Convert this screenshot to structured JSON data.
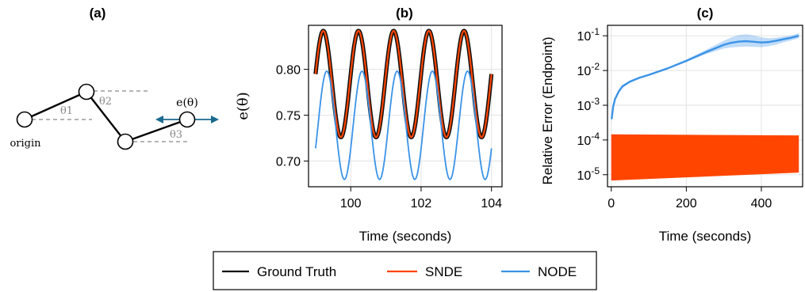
{
  "panels": {
    "a": {
      "title": "(a)",
      "origin_label": "origin",
      "theta1": "θ1",
      "theta2": "θ2",
      "theta3": "θ3",
      "e_label": "e(θ)"
    }
  },
  "legend": {
    "items": [
      {
        "label": "Ground Truth",
        "color": "#111111"
      },
      {
        "label": "SNDE",
        "color": "#ff4500"
      },
      {
        "label": "NODE",
        "color": "#3b93e8"
      }
    ]
  },
  "chart_data": [
    {
      "panel": "(b)",
      "type": "line",
      "title": "(b)",
      "xlabel": "Time (seconds)",
      "ylabel": "e(θ)",
      "xlim": [
        98.8,
        104.3
      ],
      "ylim": [
        0.672,
        0.848
      ],
      "xticks": [
        100,
        102,
        104
      ],
      "yticks": [
        0.7,
        0.75,
        0.8
      ],
      "ytick_labels": [
        "0.70",
        "0.75",
        "0.80"
      ],
      "grid": true,
      "x_range": [
        99.0,
        104.0
      ],
      "period": 1.0,
      "series": [
        {
          "name": "Ground Truth",
          "mean": 0.784,
          "amplitude": 0.058,
          "first_peak_x": 99.22,
          "color": "#111111"
        },
        {
          "name": "SNDE",
          "mean": 0.784,
          "amplitude": 0.058,
          "first_peak_x": 99.22,
          "color": "#ff4500"
        },
        {
          "name": "NODE",
          "mean": 0.739,
          "amplitude": 0.059,
          "first_peak_x": 99.32,
          "color": "#3b93e8"
        }
      ]
    },
    {
      "panel": "(c)",
      "type": "area",
      "title": "(c)",
      "xlabel": "Time (seconds)",
      "ylabel": "Relative Error (Endpoint)",
      "yscale": "log",
      "xlim": [
        -10,
        510
      ],
      "ylim": [
        4.5e-06,
        0.2
      ],
      "xticks": [
        0,
        200,
        400
      ],
      "yticks": [
        1e-05,
        0.0001,
        0.001,
        0.01,
        0.1
      ],
      "ytick_labels": [
        [
          "10",
          "-5"
        ],
        [
          "10",
          "-4"
        ],
        [
          "10",
          "-3"
        ],
        [
          "10",
          "-2"
        ],
        [
          "10",
          "-1"
        ]
      ],
      "grid": true,
      "series": [
        {
          "name": "NODE",
          "color": "#3b93e8",
          "x": [
            1,
            5,
            10,
            20,
            30,
            50,
            75,
            100,
            150,
            200,
            250,
            300,
            320,
            340,
            360,
            380,
            400,
            420,
            440,
            460,
            480,
            500
          ],
          "y": [
            0.0004,
            0.0009,
            0.0015,
            0.0025,
            0.0035,
            0.0048,
            0.0062,
            0.0075,
            0.0115,
            0.019,
            0.033,
            0.055,
            0.063,
            0.068,
            0.07,
            0.067,
            0.064,
            0.066,
            0.072,
            0.08,
            0.088,
            0.1
          ],
          "band_low": [
            0.0003,
            0.0008,
            0.0013,
            0.0022,
            0.0032,
            0.0045,
            0.0058,
            0.0071,
            0.0108,
            0.0175,
            0.029,
            0.043,
            0.046,
            0.048,
            0.049,
            0.048,
            0.047,
            0.05,
            0.056,
            0.065,
            0.074,
            0.085
          ],
          "band_high": [
            0.00055,
            0.0011,
            0.0017,
            0.0028,
            0.0039,
            0.0052,
            0.0066,
            0.0079,
            0.0122,
            0.0205,
            0.038,
            0.072,
            0.09,
            0.105,
            0.11,
            0.102,
            0.09,
            0.085,
            0.088,
            0.095,
            0.102,
            0.12
          ]
        },
        {
          "name": "SNDE",
          "color": "#ff4500",
          "x": [
            0,
            500
          ],
          "band_low": [
            6.8e-06,
            1.15e-05
          ],
          "band_high": [
            0.000145,
            0.000135
          ]
        }
      ]
    }
  ]
}
